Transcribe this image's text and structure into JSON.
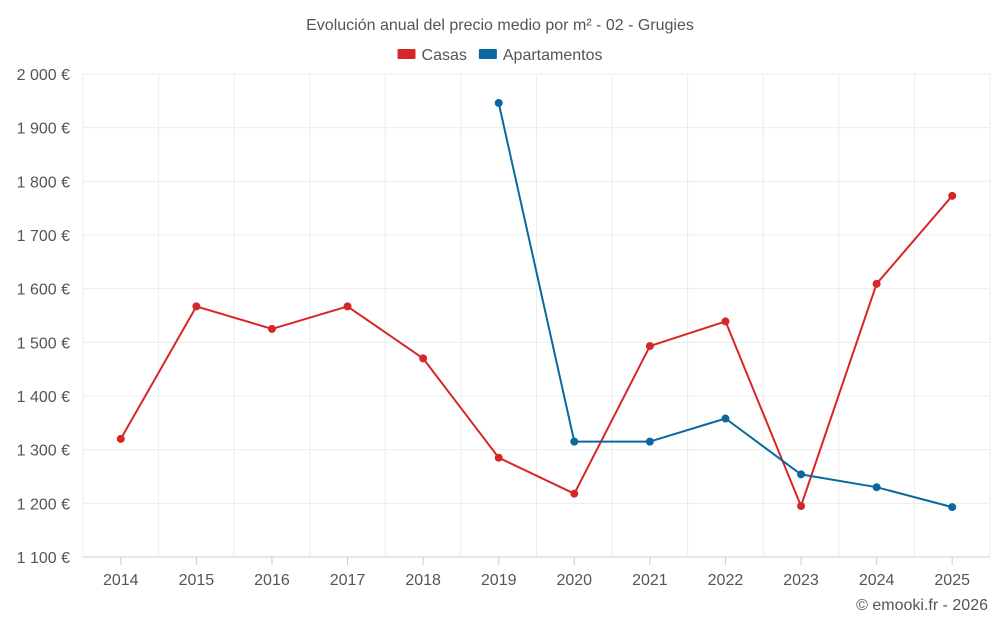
{
  "chart_data": {
    "type": "line",
    "title": "Evolución anual del precio medio por m² - 02 - Grugies",
    "categories": [
      "2014",
      "2015",
      "2016",
      "2017",
      "2018",
      "2019",
      "2020",
      "2021",
      "2022",
      "2023",
      "2024",
      "2025"
    ],
    "series": [
      {
        "name": "Casas",
        "color": "#d62728",
        "values": [
          1320,
          1567,
          1525,
          1567,
          1470,
          1285,
          1218,
          1493,
          1539,
          1195,
          1609,
          1773
        ]
      },
      {
        "name": "Apartamentos",
        "color": "#0a68a0",
        "values": [
          null,
          null,
          null,
          null,
          null,
          1946,
          1315,
          1315,
          1358,
          1254,
          1230,
          1193
        ]
      }
    ],
    "ylim": [
      1100,
      2000
    ],
    "yticks": [
      1100,
      1200,
      1300,
      1400,
      1500,
      1600,
      1700,
      1800,
      1900,
      2000
    ],
    "ytick_labels": [
      "1 100 €",
      "1 200 €",
      "1 300 €",
      "1 400 €",
      "1 500 €",
      "1 600 €",
      "1 700 €",
      "1 800 €",
      "1 900 €",
      "2 000 €"
    ],
    "xlabel": "",
    "ylabel": "",
    "grid": true,
    "legend_position": "top-center"
  },
  "credit": "© emooki.fr - 2026"
}
